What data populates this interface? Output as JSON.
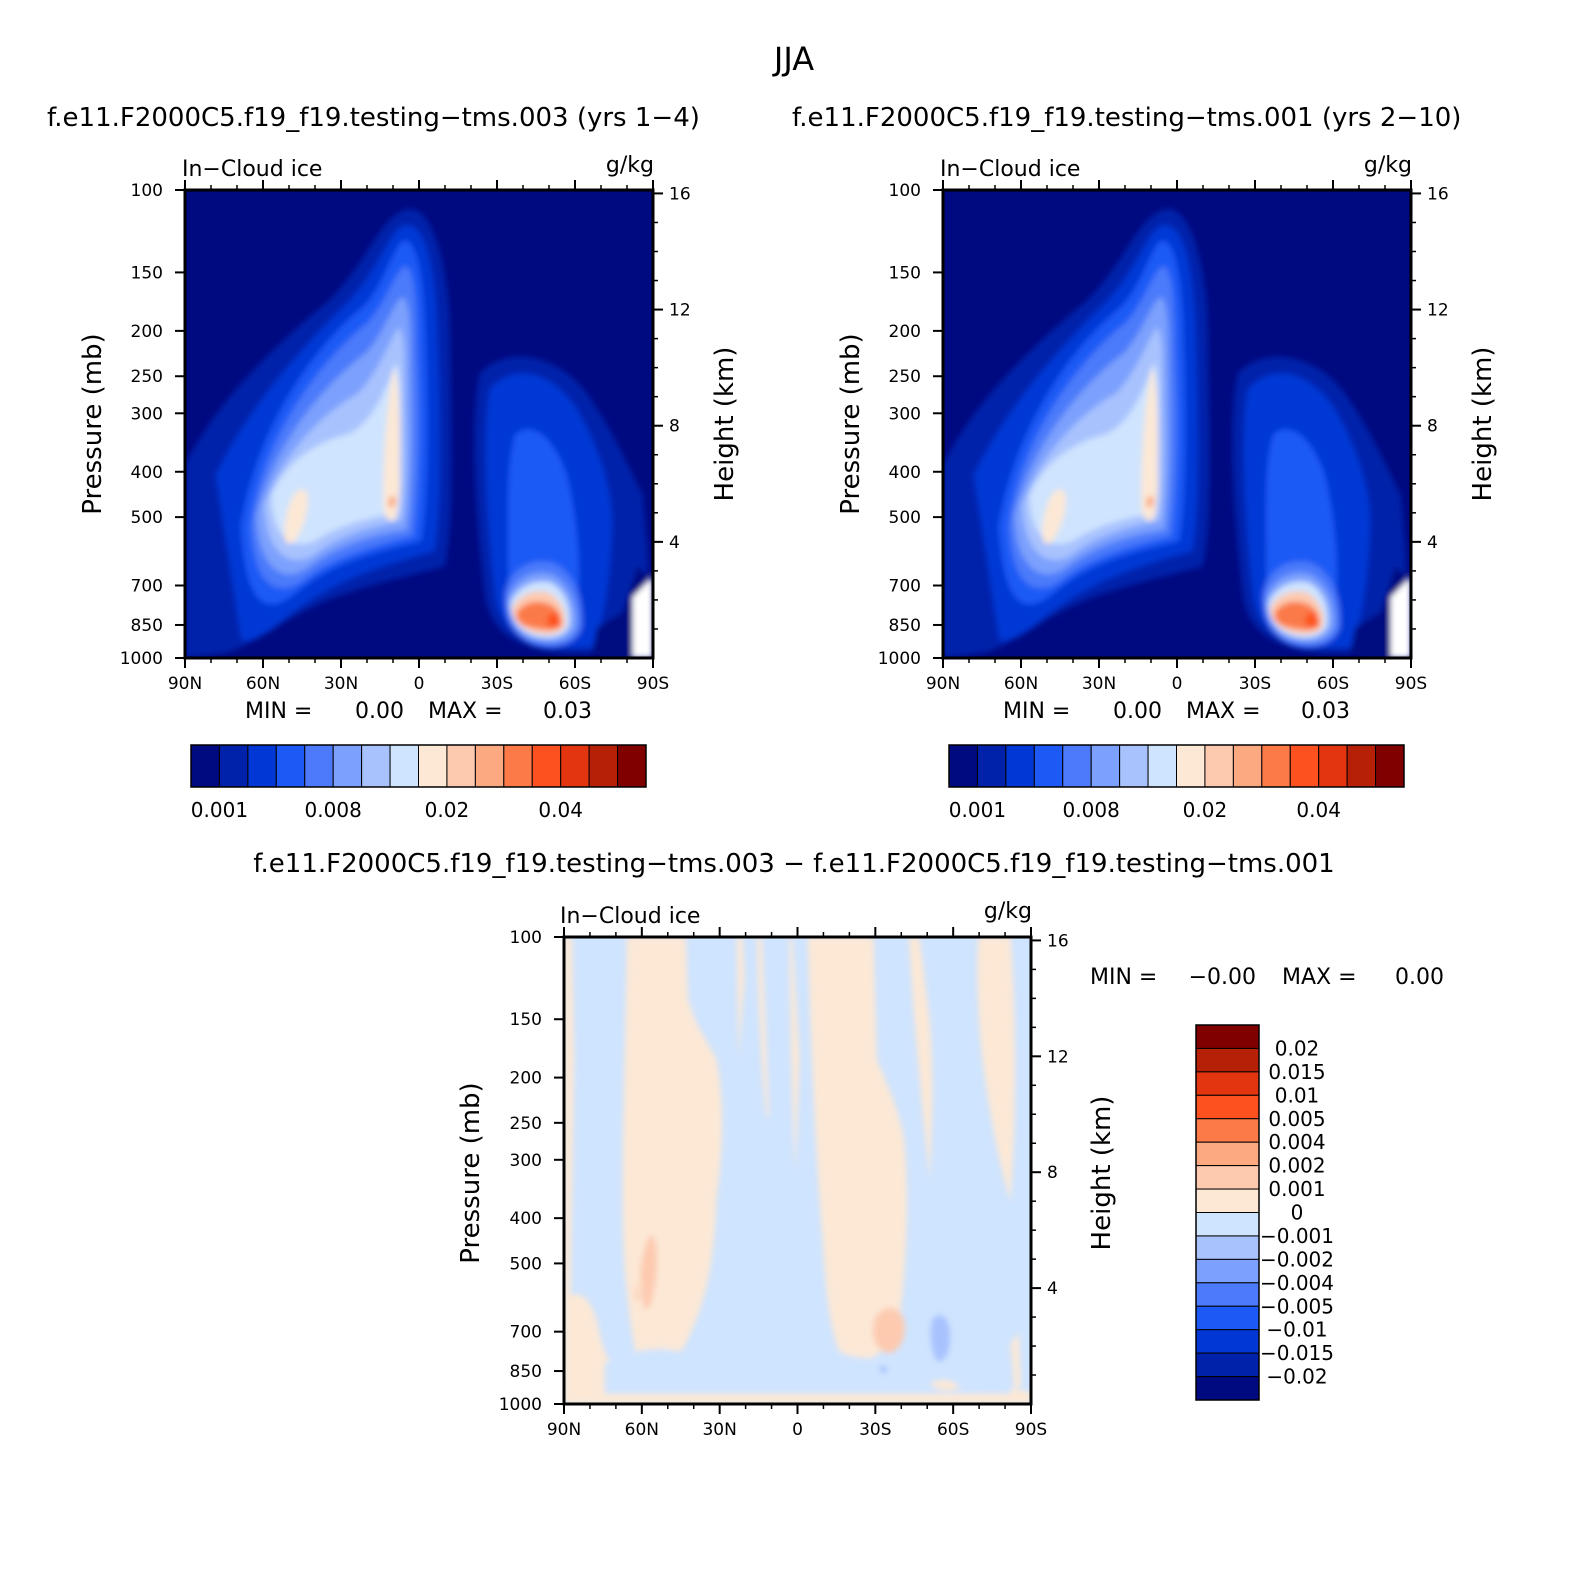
{
  "figure": {
    "title": "JJA",
    "colors": {
      "pos": [
        "#fce8d5",
        "#fdcab0",
        "#fca880",
        "#fb7a48",
        "#fd521f",
        "#e23510",
        "#b52006",
        "#800000"
      ],
      "neg": [
        "#000a80",
        "#0022aa",
        "#0037d5",
        "#1d5af5",
        "#4c7afa",
        "#7ca0fd",
        "#a8c2fe",
        "#cfe4fe"
      ]
    }
  },
  "panels": [
    {
      "id": "p1",
      "title": "f.e11.F2000C5.f19_f19.testing−tms.003 (yrs 1−4)",
      "variable": "In−Cloud ice",
      "units": "g/kg",
      "ylabel_left": "Pressure (mb)",
      "ylabel_right": "Height (km)",
      "min_label": "MIN =",
      "min_value": "0.00",
      "max_label": "MAX =",
      "max_value": "0.03"
    },
    {
      "id": "p2",
      "title": "f.e11.F2000C5.f19_f19.testing−tms.001 (yrs 2−10)",
      "variable": "In−Cloud ice",
      "units": "g/kg",
      "ylabel_left": "Pressure (mb)",
      "ylabel_right": "Height (km)",
      "min_label": "MIN =",
      "min_value": "0.00",
      "max_label": "MAX =",
      "max_value": "0.03"
    },
    {
      "id": "p3",
      "title": "f.e11.F2000C5.f19_f19.testing−tms.003 − f.e11.F2000C5.f19_f19.testing−tms.001",
      "variable": "In−Cloud ice",
      "units": "g/kg",
      "ylabel_left": "Pressure (mb)",
      "ylabel_right": "Height (km)",
      "min_label": "MIN =",
      "min_value": "−0.00",
      "max_label": "MAX =",
      "max_value": "0.00"
    }
  ],
  "chart_data": [
    {
      "type": "heatmap",
      "title": "f.e11.F2000C5.f19_f19.testing−tms.003 (yrs 1−4)",
      "subtitle": "In−Cloud ice",
      "units": "g/kg",
      "x_ticks": [
        "90N",
        "60N",
        "30N",
        "0",
        "30S",
        "60S",
        "90S"
      ],
      "x_values": [
        90,
        60,
        30,
        0,
        -30,
        -60,
        -90
      ],
      "y_left_label": "Pressure (mb)",
      "y_left_ticks": [
        100,
        150,
        200,
        250,
        300,
        400,
        500,
        700,
        850,
        1000
      ],
      "y_left_scale": "log",
      "y_right_label": "Height (km)",
      "y_right_ticks": [
        16,
        12,
        8,
        4
      ],
      "colorbar_ticks": [
        "0.001",
        "0.008",
        "0.02",
        "0.04"
      ],
      "min": 0.0,
      "max": 0.03,
      "features": [
        {
          "region": "tropical ice column",
          "lat_range": [
            5,
            45
          ],
          "p_top_mb": 110,
          "p_bottom_mb": 550,
          "peak_g_kg": 0.02,
          "peak_lat": 10,
          "peak_p_mb": 400
        },
        {
          "region": "northern mid-latitude",
          "lat_range": [
            40,
            75
          ],
          "p_top_mb": 200,
          "p_bottom_mb": 880,
          "peak_g_kg": 0.02,
          "peak_lat": 55,
          "peak_p_mb": 530
        },
        {
          "region": "southern high-latitude low-level",
          "lat_range": [
            -80,
            -30
          ],
          "p_top_mb": 240,
          "p_bottom_mb": 950,
          "peak_g_kg": 0.03,
          "peak_lat": -55,
          "peak_p_mb": 850
        }
      ]
    },
    {
      "type": "heatmap",
      "title": "f.e11.F2000C5.f19_f19.testing−tms.001 (yrs 2−10)",
      "subtitle": "In−Cloud ice",
      "units": "g/kg",
      "x_ticks": [
        "90N",
        "60N",
        "30N",
        "0",
        "30S",
        "60S",
        "90S"
      ],
      "x_values": [
        90,
        60,
        30,
        0,
        -30,
        -60,
        -90
      ],
      "y_left_label": "Pressure (mb)",
      "y_left_ticks": [
        100,
        150,
        200,
        250,
        300,
        400,
        500,
        700,
        850,
        1000
      ],
      "y_left_scale": "log",
      "y_right_label": "Height (km)",
      "y_right_ticks": [
        16,
        12,
        8,
        4
      ],
      "colorbar_ticks": [
        "0.001",
        "0.008",
        "0.02",
        "0.04"
      ],
      "min": 0.0,
      "max": 0.03,
      "features": [
        {
          "region": "tropical ice column",
          "lat_range": [
            5,
            45
          ],
          "p_top_mb": 110,
          "p_bottom_mb": 550,
          "peak_g_kg": 0.02,
          "peak_lat": 10,
          "peak_p_mb": 400
        },
        {
          "region": "northern mid-latitude",
          "lat_range": [
            40,
            75
          ],
          "p_top_mb": 200,
          "p_bottom_mb": 880,
          "peak_g_kg": 0.02,
          "peak_lat": 55,
          "peak_p_mb": 530
        },
        {
          "region": "southern high-latitude low-level",
          "lat_range": [
            -80,
            -30
          ],
          "p_top_mb": 240,
          "p_bottom_mb": 950,
          "peak_g_kg": 0.03,
          "peak_lat": -55,
          "peak_p_mb": 850
        }
      ]
    },
    {
      "type": "heatmap",
      "title": "f.e11.F2000C5.f19_f19.testing−tms.003 − f.e11.F2000C5.f19_f19.testing−tms.001",
      "subtitle": "In−Cloud ice",
      "units": "g/kg",
      "x_ticks": [
        "90N",
        "60N",
        "30N",
        "0",
        "30S",
        "60S",
        "90S"
      ],
      "x_values": [
        90,
        60,
        30,
        0,
        -30,
        -60,
        -90
      ],
      "y_left_label": "Pressure (mb)",
      "y_left_ticks": [
        100,
        150,
        200,
        250,
        300,
        400,
        500,
        700,
        850,
        1000
      ],
      "y_left_scale": "log",
      "y_right_label": "Height (km)",
      "y_right_ticks": [
        16,
        12,
        8,
        4
      ],
      "colorbar_ticks": [
        "0.02",
        "0.015",
        "0.01",
        "0.005",
        "0.004",
        "0.002",
        "0.001",
        "0",
        "−0.001",
        "−0.002",
        "−0.004",
        "−0.005",
        "−0.01",
        "−0.015",
        "−0.02"
      ],
      "min": -0.0,
      "max": 0.0,
      "bands": [
        {
          "lat_range": [
            90,
            85
          ],
          "sign": "positive"
        },
        {
          "lat_range": [
            85,
            65
          ],
          "sign": "negative"
        },
        {
          "lat_range": [
            65,
            45
          ],
          "sign": "positive"
        },
        {
          "lat_range": [
            45,
            25
          ],
          "sign": "negative"
        },
        {
          "lat_range": [
            25,
            0
          ],
          "sign": "positive"
        },
        {
          "lat_range": [
            0,
            -22
          ],
          "sign": "negative"
        },
        {
          "lat_range": [
            -22,
            -45
          ],
          "sign": "positive"
        },
        {
          "lat_range": [
            -45,
            -70
          ],
          "sign": "negative"
        },
        {
          "lat_range": [
            -70,
            -80
          ],
          "sign": "positive"
        },
        {
          "lat_range": [
            -80,
            -90
          ],
          "sign": "negative"
        }
      ]
    }
  ]
}
